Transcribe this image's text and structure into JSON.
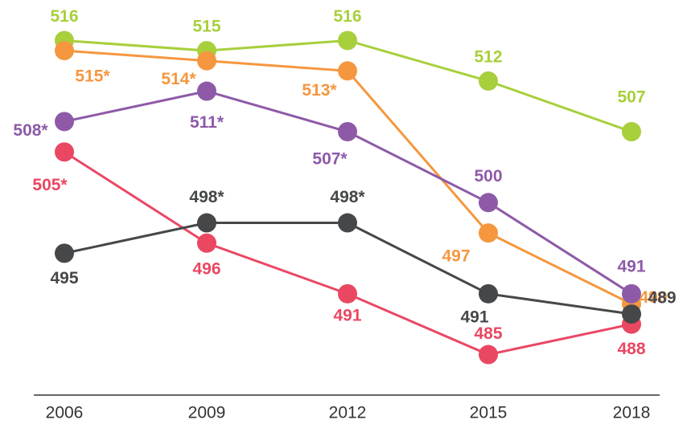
{
  "chart_data": {
    "type": "line",
    "categories": [
      "2006",
      "2009",
      "2012",
      "2015",
      "2018"
    ],
    "ylim": [
      481,
      520
    ],
    "series": [
      {
        "color": "#a8cf3c",
        "values": [
          516,
          515,
          516,
          512,
          507
        ]
      },
      {
        "color": "#f5973f",
        "values": [
          515,
          514,
          513,
          497,
          490
        ],
        "value_labels": [
          "515*",
          "514*",
          "513*",
          "497",
          "490"
        ]
      },
      {
        "color": "#8e5aa8",
        "values": [
          508,
          511,
          507,
          500,
          491
        ],
        "value_labels": [
          "508*",
          "511*",
          "507*",
          "500",
          "491"
        ]
      },
      {
        "color": "#ea4763",
        "values": [
          505,
          496,
          491,
          485,
          488
        ],
        "value_labels": [
          "505*",
          "496",
          "491",
          "485",
          "488"
        ]
      },
      {
        "color": "#454749",
        "values": [
          495,
          498,
          498,
          491,
          489
        ],
        "value_labels": [
          "495",
          "498*",
          "498*",
          "491",
          "489"
        ]
      }
    ]
  }
}
